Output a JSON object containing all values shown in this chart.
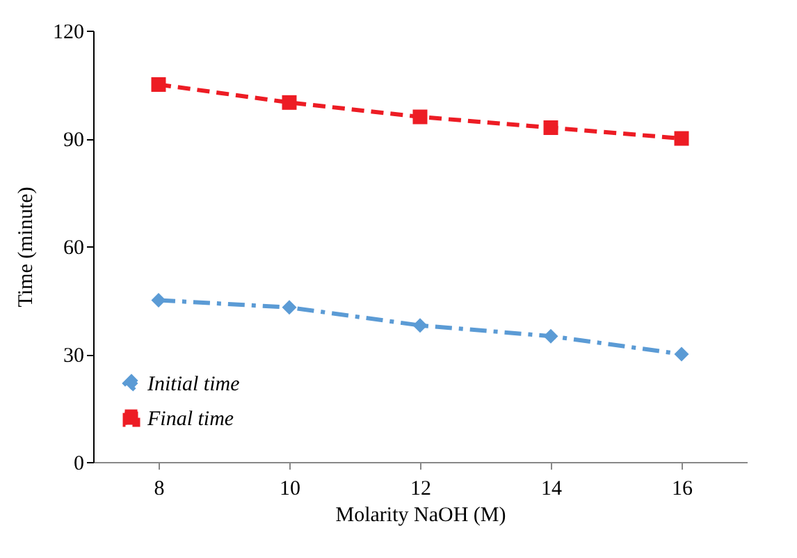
{
  "chart_data": {
    "type": "line",
    "xlabel": "Molarity  NaOH (M)",
    "ylabel": "Time (minute)",
    "categories": [
      "8",
      "10",
      "12",
      "14",
      "16"
    ],
    "series": [
      {
        "name": "Initial time",
        "color": "#5b9bd5",
        "marker": "diamond",
        "line_style": "dashdot",
        "values": [
          45,
          43,
          38,
          35,
          30
        ]
      },
      {
        "name": "Final time",
        "color": "#ed1c24",
        "marker": "square",
        "line_style": "dashed",
        "values": [
          105,
          100,
          96,
          93,
          90
        ]
      }
    ],
    "ylim": [
      0,
      120
    ],
    "yticks": [
      0,
      30,
      60,
      90,
      120
    ],
    "grid": false,
    "legend": "bottom left"
  }
}
